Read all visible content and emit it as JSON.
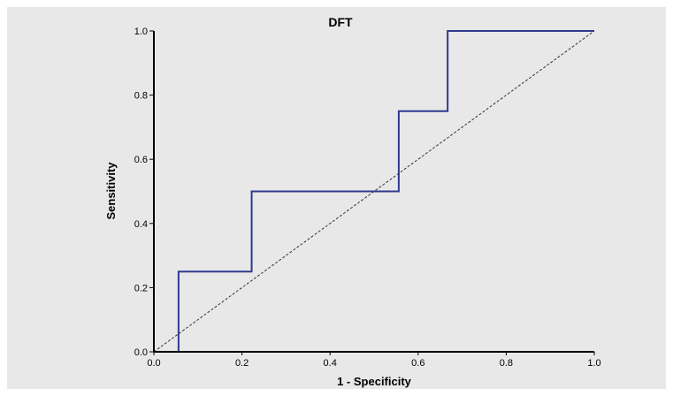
{
  "chart_data": {
    "type": "line",
    "title": "DFT",
    "xlabel": "1 - Specificity",
    "ylabel": "Sensitivity",
    "xlim": [
      0.0,
      1.0
    ],
    "ylim": [
      0.0,
      1.0
    ],
    "x_ticks": [
      "0.0",
      "0.2",
      "0.4",
      "0.6",
      "0.8",
      "1.0"
    ],
    "y_ticks": [
      "0.0",
      "0.2",
      "0.4",
      "0.6",
      "0.8",
      "1.0"
    ],
    "grid": false,
    "background_color": "#e8e8e8",
    "series": [
      {
        "style": "step",
        "color": "#2e3a8f",
        "x": [
          0.0,
          0.056,
          0.056,
          0.222,
          0.222,
          0.556,
          0.556,
          0.667,
          0.667,
          1.0
        ],
        "y": [
          0.0,
          0.0,
          0.25,
          0.25,
          0.5,
          0.5,
          0.75,
          0.75,
          1.0,
          1.0
        ]
      },
      {
        "style": "dashed",
        "color": "#333333",
        "x": [
          0.0,
          1.0
        ],
        "y": [
          0.0,
          1.0
        ]
      }
    ]
  }
}
